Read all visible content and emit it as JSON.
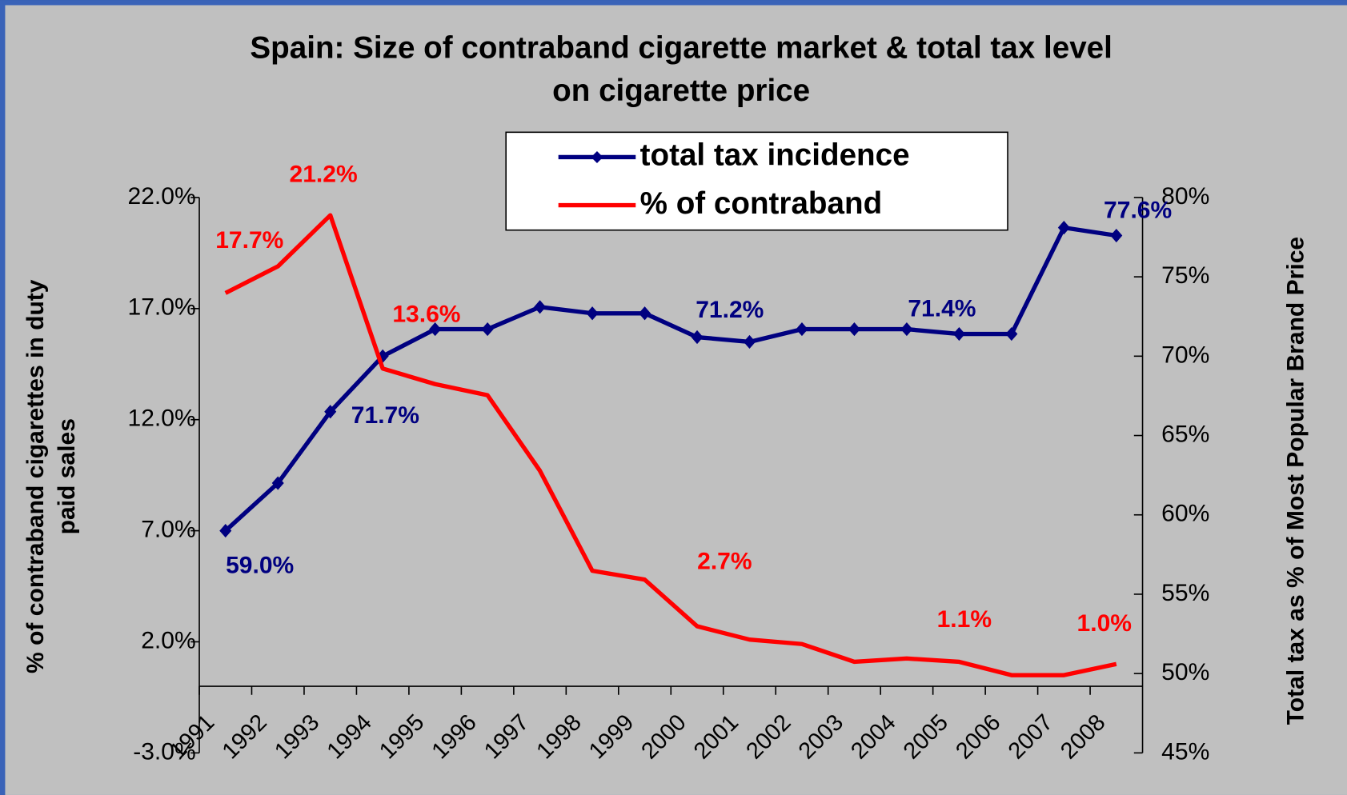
{
  "chart_data": {
    "type": "line",
    "title": "Spain: Size of contraband cigarette market &  total tax level",
    "subtitle": "on cigarette price",
    "y_label": "% of contraband cigarettes in duty paid sales",
    "y2_label": "Total tax as % of Most Popular Brand Price",
    "categories": [
      "1991",
      "1992",
      "1993",
      "1994",
      "1995",
      "1996",
      "1997",
      "1998",
      "1999",
      "2000",
      "2001",
      "2002",
      "2003",
      "2004",
      "2005",
      "2006",
      "2007",
      "2008"
    ],
    "ylim": [
      -3,
      22
    ],
    "yticks": [
      {
        "value": -3,
        "label": "-3.0%"
      },
      {
        "value": 2,
        "label": "2.0%"
      },
      {
        "value": 7,
        "label": "7.0%"
      },
      {
        "value": 12,
        "label": "12.0%"
      },
      {
        "value": 17,
        "label": "17.0%"
      },
      {
        "value": 22,
        "label": "22.0%"
      }
    ],
    "y2lim": [
      45,
      80
    ],
    "y2ticks": [
      {
        "value": 45,
        "label": "45%"
      },
      {
        "value": 50,
        "label": "50%"
      },
      {
        "value": 55,
        "label": "55%"
      },
      {
        "value": 60,
        "label": "60%"
      },
      {
        "value": 65,
        "label": "65%"
      },
      {
        "value": 70,
        "label": "70%"
      },
      {
        "value": 75,
        "label": "75%"
      },
      {
        "value": 80,
        "label": "80%"
      }
    ],
    "legend": "top",
    "series": [
      {
        "name": "total tax incidence",
        "color": "#000080",
        "axis": "y2",
        "markers": true,
        "values": [
          59.0,
          62.0,
          66.5,
          70.0,
          71.7,
          71.7,
          73.1,
          72.7,
          72.7,
          71.2,
          70.9,
          71.7,
          71.7,
          71.7,
          71.4,
          71.4,
          78.1,
          77.6
        ],
        "value_labels": [
          "59.0%",
          null,
          null,
          null,
          "71.7%",
          null,
          null,
          null,
          null,
          "71.2%",
          null,
          null,
          null,
          null,
          "71.4%",
          null,
          null,
          "77.6%"
        ]
      },
      {
        "name": "% of contraband",
        "color": "#ff0000",
        "axis": "y",
        "markers": false,
        "values": [
          17.7,
          18.9,
          21.2,
          14.3,
          13.6,
          13.1,
          9.7,
          5.2,
          4.8,
          2.7,
          2.1,
          1.9,
          1.1,
          1.25,
          1.1,
          0.5,
          0.5,
          1.0
        ],
        "value_labels": [
          "17.7%",
          null,
          "21.2%",
          null,
          "13.6%",
          null,
          null,
          null,
          null,
          "2.7%",
          null,
          null,
          null,
          null,
          "1.1%",
          null,
          null,
          "1.0%"
        ]
      }
    ]
  }
}
